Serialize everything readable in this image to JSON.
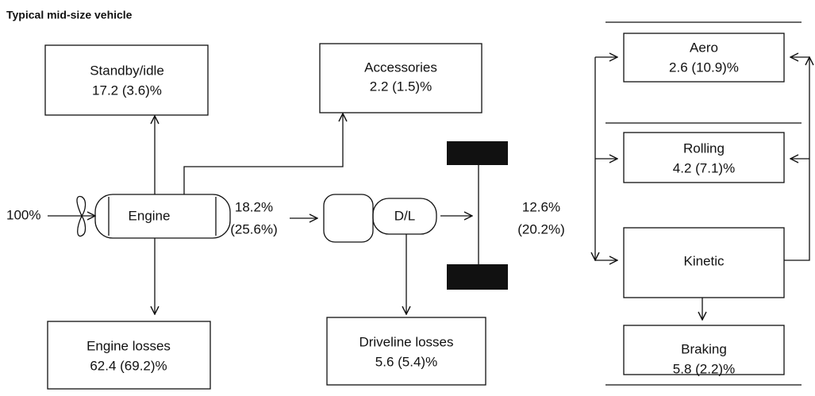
{
  "title": "Typical mid-size vehicle",
  "input": "100%",
  "engine": "Engine",
  "drive_unit": "D/L",
  "nodes": [
    {
      "label": "Standby/idle",
      "value": "17.2 (3.6)%"
    },
    {
      "label": "Accessories",
      "value": "2.2 (1.5)%"
    },
    {
      "label": "Engine losses",
      "value": "62.4 (69.2)%"
    },
    {
      "label": "Driveline losses",
      "value": "5.6 (5.4)%"
    },
    {
      "label": "Aero",
      "value": "2.6 (10.9)%"
    },
    {
      "label": "Rolling",
      "value": "4.2 (7.1)%"
    },
    {
      "label": "Kinetic"
    },
    {
      "label": "Braking",
      "value": "5.8 (2.2)%"
    }
  ],
  "flows": [
    {
      "value": "18.2%",
      "alt": "(25.6%)"
    },
    {
      "value": "12.6%",
      "alt": "(20.2%)"
    }
  ]
}
